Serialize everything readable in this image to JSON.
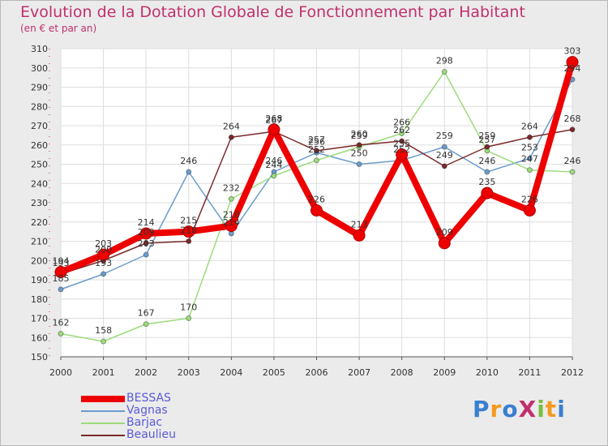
{
  "title": "Evolution de la Dotation Globale de Fonctionnement par Habitant",
  "subtitle": "(en € et par an)",
  "logo": {
    "text": "ProXiti",
    "colors": [
      "#3a7fd0",
      "#f39a1e",
      "#3a7fd0",
      "#c0306e",
      "#78c040",
      "#f39a1e",
      "#3a7fd0"
    ]
  },
  "chart_data": {
    "type": "line",
    "title": "Evolution de la Dotation Globale de Fonctionnement par Habitant",
    "subtitle": "(en € et par an)",
    "xlabel": "",
    "ylabel": "",
    "categories": [
      "2000",
      "2001",
      "2002",
      "2003",
      "2004",
      "2005",
      "2006",
      "2007",
      "2008",
      "2009",
      "2010",
      "2011",
      "2012"
    ],
    "ylim": [
      150,
      310
    ],
    "yticks": [
      150,
      160,
      170,
      180,
      190,
      200,
      210,
      220,
      230,
      240,
      250,
      260,
      270,
      280,
      290,
      300,
      310
    ],
    "grid": true,
    "legend_position": "bottom-left",
    "series": [
      {
        "name": "Vagnas",
        "color": "#6a9ccc",
        "values": [
          185,
          193,
          203,
          246,
          214,
          246,
          256,
          250,
          252,
          259,
          246,
          253,
          294
        ],
        "labels": [
          "185",
          "193",
          "203",
          "246",
          "214",
          "246",
          "256",
          "250",
          "252",
          "259",
          "246",
          "253",
          "294"
        ]
      },
      {
        "name": "Barjac",
        "color": "#9cdc7c",
        "values": [
          162,
          158,
          167,
          170,
          232,
          244,
          252,
          259,
          266,
          298,
          257,
          247,
          246
        ],
        "labels": [
          "162",
          "158",
          "167",
          "170",
          "232",
          "244",
          "252",
          "259",
          "266",
          "298",
          "257",
          "247",
          "246"
        ]
      },
      {
        "name": "Beaulieu",
        "color": "#7a2a2a",
        "values": [
          193,
          200,
          209,
          210,
          264,
          267,
          257,
          260,
          262,
          249,
          259,
          264,
          268
        ],
        "labels": [
          "193",
          "200",
          "209",
          "210",
          "264",
          "267",
          "257",
          "260",
          "262",
          "249",
          "259",
          "264",
          "268"
        ]
      },
      {
        "name": "BESSAS",
        "color": "#ee0000",
        "values": [
          194,
          203,
          214,
          215,
          218,
          268,
          226,
          213,
          255,
          209,
          235,
          226,
          303
        ],
        "labels": [
          "194",
          "203",
          "214",
          "215",
          "218",
          "268",
          "226",
          "213",
          "255",
          "209",
          "235",
          "226",
          "303"
        ]
      }
    ],
    "legend": [
      "BESSAS",
      "Vagnas",
      "Barjac",
      "Beaulieu"
    ]
  }
}
